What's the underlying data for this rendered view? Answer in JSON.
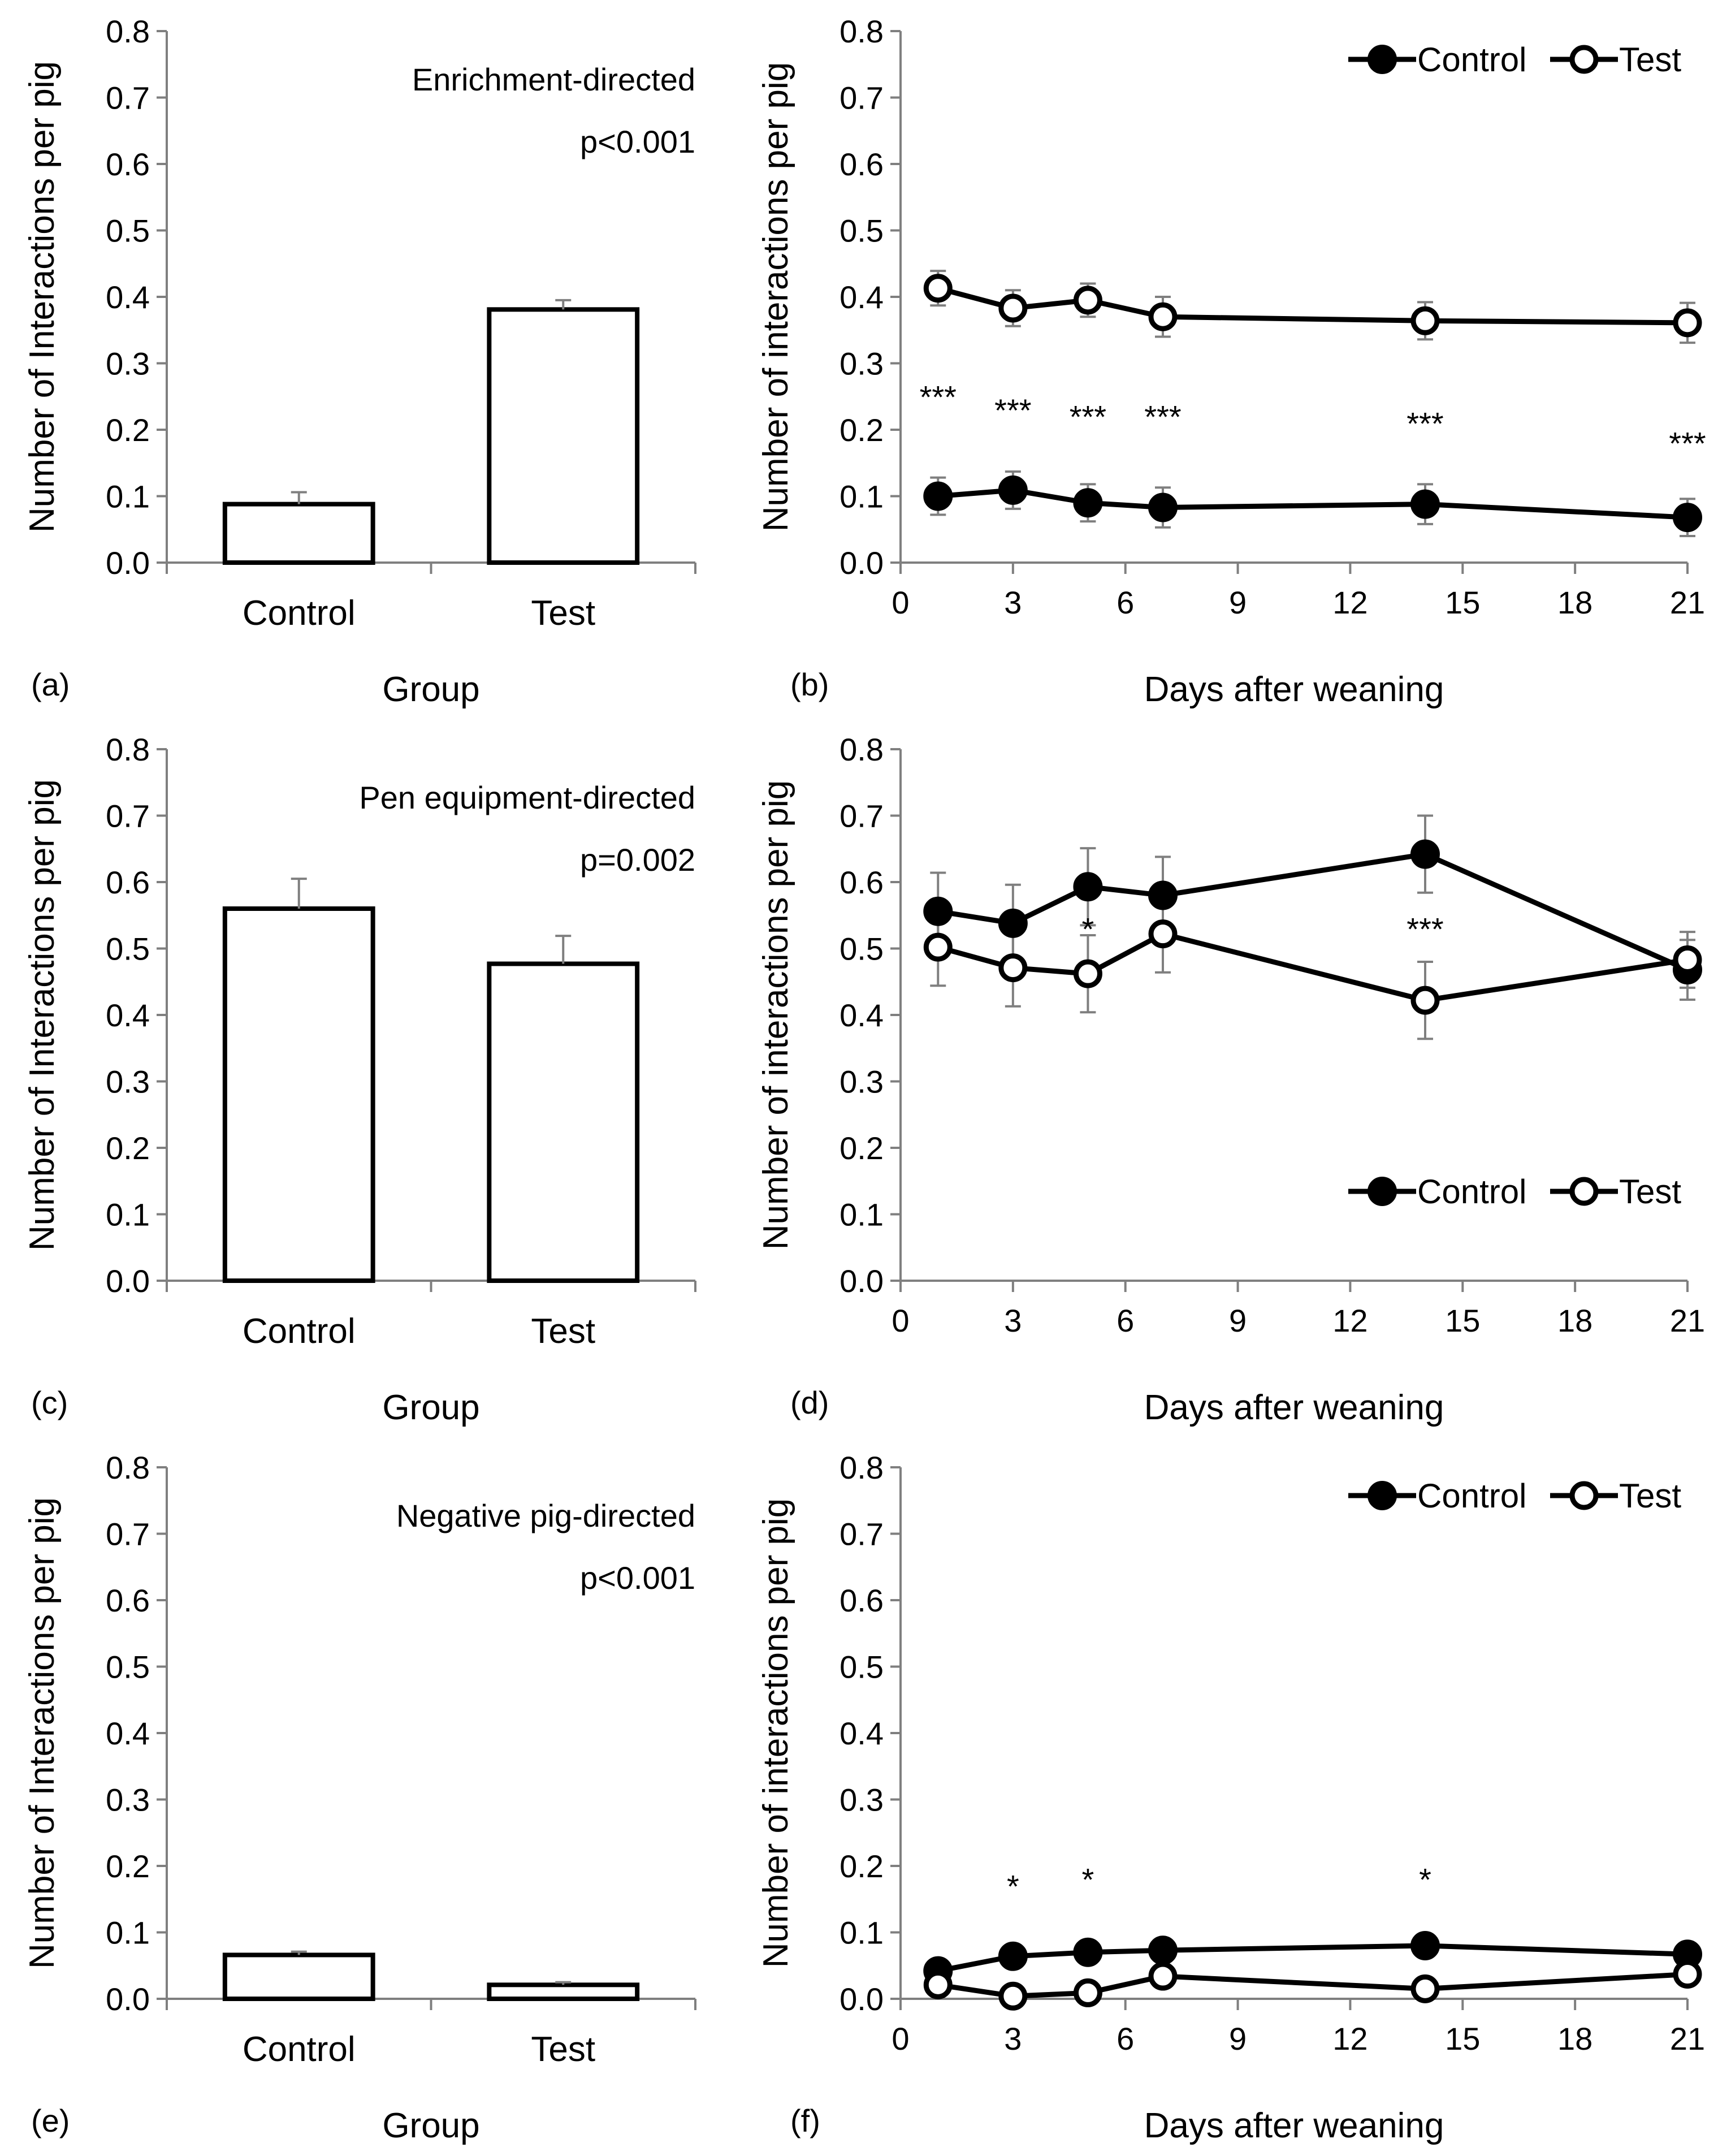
{
  "chart_data": [
    {
      "panel": "(a)",
      "type": "bar",
      "categories": [
        "Control",
        "Test"
      ],
      "values": [
        0.088,
        0.381
      ],
      "errors": [
        0.018,
        0.014
      ],
      "xlabel": "Group",
      "ylabel": "Number of Interactions per pig",
      "ylim": [
        0,
        0.8
      ],
      "yticks": [
        "0.0",
        "0.1",
        "0.2",
        "0.3",
        "0.4",
        "0.5",
        "0.6",
        "0.7",
        "0.8"
      ],
      "annotation": [
        "Enrichment-directed",
        "p<0.001"
      ]
    },
    {
      "panel": "(b)",
      "type": "line",
      "x": [
        1,
        3,
        5,
        7,
        14,
        21
      ],
      "series": [
        {
          "name": "Control",
          "marker": "filled",
          "values": [
            0.1,
            0.109,
            0.09,
            0.083,
            0.088,
            0.068
          ],
          "errors": [
            0.028,
            0.028,
            0.028,
            0.03,
            0.03,
            0.028
          ]
        },
        {
          "name": "Test",
          "marker": "open",
          "values": [
            0.413,
            0.383,
            0.395,
            0.37,
            0.364,
            0.361
          ],
          "errors": [
            0.026,
            0.027,
            0.025,
            0.03,
            0.028,
            0.03
          ]
        }
      ],
      "significance": [
        {
          "x": 1,
          "label": "***",
          "y": 0.25
        },
        {
          "x": 3,
          "label": "***",
          "y": 0.23
        },
        {
          "x": 5,
          "label": "***",
          "y": 0.22
        },
        {
          "x": 7,
          "label": "***",
          "y": 0.22
        },
        {
          "x": 14,
          "label": "***",
          "y": 0.21
        },
        {
          "x": 21,
          "label": "***",
          "y": 0.18
        }
      ],
      "xlabel": "Days after weaning",
      "ylabel": "Number of interactions per pig",
      "xlim": [
        0,
        21
      ],
      "xticks": [
        "0",
        "3",
        "6",
        "9",
        "12",
        "15",
        "18",
        "21"
      ],
      "ylim": [
        0,
        0.8
      ],
      "yticks": [
        "0.0",
        "0.1",
        "0.2",
        "0.3",
        "0.4",
        "0.5",
        "0.6",
        "0.7",
        "0.8"
      ],
      "legend": "top-right"
    },
    {
      "panel": "(c)",
      "type": "bar",
      "categories": [
        "Control",
        "Test"
      ],
      "values": [
        0.56,
        0.477
      ],
      "errors": [
        0.045,
        0.042
      ],
      "xlabel": "Group",
      "ylabel": "Number of Interactions per pig",
      "ylim": [
        0,
        0.8
      ],
      "yticks": [
        "0.0",
        "0.1",
        "0.2",
        "0.3",
        "0.4",
        "0.5",
        "0.6",
        "0.7",
        "0.8"
      ],
      "annotation": [
        "Pen equipment-directed",
        "p=0.002"
      ]
    },
    {
      "panel": "(d)",
      "type": "line",
      "x": [
        1,
        3,
        5,
        7,
        14,
        21
      ],
      "series": [
        {
          "name": "Control",
          "marker": "filled",
          "values": [
            0.556,
            0.538,
            0.593,
            0.58,
            0.642,
            0.468
          ],
          "errors": [
            0.058,
            0.058,
            0.058,
            0.058,
            0.058,
            0.045
          ]
        },
        {
          "name": "Test",
          "marker": "open",
          "values": [
            0.502,
            0.471,
            0.462,
            0.522,
            0.422,
            0.483
          ],
          "errors": [
            0.058,
            0.058,
            0.058,
            0.058,
            0.058,
            0.042
          ]
        }
      ],
      "significance": [
        {
          "x": 5,
          "label": "*",
          "y": 0.53
        },
        {
          "x": 14,
          "label": "***",
          "y": 0.53
        }
      ],
      "xlabel": "Days after weaning",
      "ylabel": "Number of interactions per pig",
      "xlim": [
        0,
        21
      ],
      "xticks": [
        "0",
        "3",
        "6",
        "9",
        "12",
        "15",
        "18",
        "21"
      ],
      "ylim": [
        0,
        0.8
      ],
      "yticks": [
        "0.0",
        "0.1",
        "0.2",
        "0.3",
        "0.4",
        "0.5",
        "0.6",
        "0.7",
        "0.8"
      ],
      "legend": "lower-right"
    },
    {
      "panel": "(e)",
      "type": "bar",
      "categories": [
        "Control",
        "Test"
      ],
      "values": [
        0.066,
        0.021
      ],
      "errors": [
        0.005,
        0.004
      ],
      "xlabel": "Group",
      "ylabel": "Number of Interactions per pig",
      "ylim": [
        0,
        0.8
      ],
      "yticks": [
        "0.0",
        "0.1",
        "0.2",
        "0.3",
        "0.4",
        "0.5",
        "0.6",
        "0.7",
        "0.8"
      ],
      "annotation": [
        "Negative pig-directed",
        "p<0.001"
      ]
    },
    {
      "panel": "(f)",
      "type": "line",
      "x": [
        1,
        3,
        5,
        7,
        14,
        21
      ],
      "series": [
        {
          "name": "Control",
          "marker": "filled",
          "values": [
            0.042,
            0.064,
            0.07,
            0.073,
            0.08,
            0.067
          ],
          "errors": [
            0.008,
            0.008,
            0.008,
            0.008,
            0.008,
            0.008
          ]
        },
        {
          "name": "Test",
          "marker": "open",
          "values": [
            0.021,
            0.004,
            0.009,
            0.034,
            0.015,
            0.037
          ],
          "errors": [
            0.008,
            0.008,
            0.008,
            0.008,
            0.008,
            0.008
          ]
        }
      ],
      "significance": [
        {
          "x": 3,
          "label": "*",
          "y": 0.17
        },
        {
          "x": 5,
          "label": "*",
          "y": 0.18
        },
        {
          "x": 14,
          "label": "*",
          "y": 0.18
        }
      ],
      "xlabel": "Days after weaning",
      "ylabel": "Number of interactions per pig",
      "xlim": [
        0,
        21
      ],
      "xticks": [
        "0",
        "3",
        "6",
        "9",
        "12",
        "15",
        "18",
        "21"
      ],
      "ylim": [
        0,
        0.8
      ],
      "yticks": [
        "0.0",
        "0.1",
        "0.2",
        "0.3",
        "0.4",
        "0.5",
        "0.6",
        "0.7",
        "0.8"
      ],
      "legend": "top-right"
    }
  ]
}
